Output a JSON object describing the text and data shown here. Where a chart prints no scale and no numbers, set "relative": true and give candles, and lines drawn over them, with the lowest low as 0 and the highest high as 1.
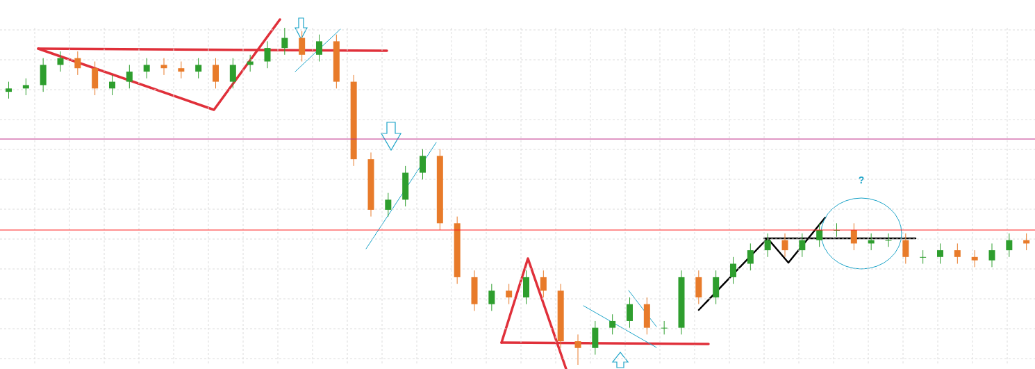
{
  "chart_data": {
    "type": "candlestick",
    "relative": true,
    "grid": true,
    "tick_labels": false,
    "categories": [
      null,
      null,
      null,
      null,
      null,
      null,
      null,
      null,
      null,
      null,
      null,
      null,
      null,
      null,
      null,
      null,
      null,
      null,
      null,
      null,
      null,
      null,
      null,
      null,
      null,
      null,
      null,
      null,
      null,
      null,
      null,
      null,
      null,
      null,
      null,
      null,
      null,
      null,
      null,
      null,
      null,
      null,
      null,
      null,
      null,
      null,
      null,
      null,
      null,
      null,
      null,
      null,
      null,
      null,
      null,
      null,
      null,
      null,
      null,
      null
    ],
    "ohlc": [
      [
        0.81,
        0.84,
        0.79,
        0.82
      ],
      [
        0.82,
        0.85,
        0.8,
        0.83
      ],
      [
        0.83,
        0.91,
        0.81,
        0.89
      ],
      [
        0.89,
        0.93,
        0.87,
        0.91
      ],
      [
        0.91,
        0.93,
        0.86,
        0.88
      ],
      [
        0.88,
        0.9,
        0.8,
        0.82
      ],
      [
        0.82,
        0.86,
        0.8,
        0.84
      ],
      [
        0.84,
        0.89,
        0.82,
        0.87
      ],
      [
        0.87,
        0.91,
        0.85,
        0.89
      ],
      [
        0.89,
        0.91,
        0.86,
        0.88
      ],
      [
        0.88,
        0.9,
        0.85,
        0.87
      ],
      [
        0.87,
        0.91,
        0.85,
        0.89
      ],
      [
        0.89,
        0.91,
        0.82,
        0.84
      ],
      [
        0.84,
        0.91,
        0.82,
        0.89
      ],
      [
        0.89,
        0.92,
        0.87,
        0.9
      ],
      [
        0.9,
        0.96,
        0.88,
        0.94
      ],
      [
        0.94,
        1.0,
        0.92,
        0.97
      ],
      [
        0.97,
        0.99,
        0.9,
        0.92
      ],
      [
        0.92,
        0.98,
        0.9,
        0.96
      ],
      [
        0.96,
        0.98,
        0.82,
        0.84
      ],
      [
        0.84,
        0.86,
        0.59,
        0.61
      ],
      [
        0.61,
        0.63,
        0.44,
        0.46
      ],
      [
        0.46,
        0.51,
        0.44,
        0.49
      ],
      [
        0.49,
        0.59,
        0.47,
        0.57
      ],
      [
        0.57,
        0.64,
        0.55,
        0.62
      ],
      [
        0.62,
        0.64,
        0.4,
        0.42
      ],
      [
        0.42,
        0.44,
        0.24,
        0.26
      ],
      [
        0.26,
        0.28,
        0.16,
        0.18
      ],
      [
        0.18,
        0.24,
        0.16,
        0.22
      ],
      [
        0.22,
        0.24,
        0.18,
        0.2
      ],
      [
        0.2,
        0.28,
        0.18,
        0.26
      ],
      [
        0.26,
        0.28,
        0.2,
        0.22
      ],
      [
        0.22,
        0.24,
        0.05,
        0.07
      ],
      [
        0.07,
        0.09,
        0.0,
        0.05
      ],
      [
        0.05,
        0.13,
        0.03,
        0.11
      ],
      [
        0.11,
        0.15,
        0.09,
        0.13
      ],
      [
        0.13,
        0.2,
        0.11,
        0.18
      ],
      [
        0.18,
        0.2,
        0.09,
        0.11
      ],
      [
        0.11,
        0.13,
        0.09,
        0.11
      ],
      [
        0.11,
        0.28,
        0.09,
        0.26
      ],
      [
        0.26,
        0.28,
        0.18,
        0.2
      ],
      [
        0.2,
        0.28,
        0.18,
        0.26
      ],
      [
        0.26,
        0.32,
        0.24,
        0.3
      ],
      [
        0.3,
        0.36,
        0.28,
        0.34
      ],
      [
        0.34,
        0.39,
        0.32,
        0.37
      ],
      [
        0.37,
        0.39,
        0.32,
        0.34
      ],
      [
        0.34,
        0.39,
        0.32,
        0.37
      ],
      [
        0.37,
        0.42,
        0.35,
        0.4
      ],
      [
        0.4,
        0.42,
        0.38,
        0.4
      ],
      [
        0.4,
        0.42,
        0.34,
        0.36
      ],
      [
        0.36,
        0.39,
        0.34,
        0.37
      ],
      [
        0.37,
        0.39,
        0.35,
        0.37
      ],
      [
        0.37,
        0.39,
        0.3,
        0.32
      ],
      [
        0.32,
        0.34,
        0.3,
        0.32
      ],
      [
        0.32,
        0.36,
        0.3,
        0.34
      ],
      [
        0.34,
        0.36,
        0.3,
        0.32
      ],
      [
        0.32,
        0.34,
        0.29,
        0.31
      ],
      [
        0.31,
        0.36,
        0.29,
        0.34
      ],
      [
        0.34,
        0.39,
        0.32,
        0.37
      ],
      [
        0.37,
        0.39,
        0.34,
        0.36
      ]
    ],
    "colors": [
      "#2e9e2e",
      "#2e9e2e",
      "#2e9e2e",
      "#2e9e2e",
      "#e87b2a",
      "#e87b2a",
      "#2e9e2e",
      "#2e9e2e",
      "#2e9e2e",
      "#e87b2a",
      "#e87b2a",
      "#2e9e2e",
      "#e87b2a",
      "#2e9e2e",
      "#2e9e2e",
      "#2e9e2e",
      "#2e9e2e",
      "#e87b2a",
      "#2e9e2e",
      "#e87b2a",
      "#e87b2a",
      "#e87b2a",
      "#2e9e2e",
      "#2e9e2e",
      "#2e9e2e",
      "#e87b2a",
      "#e87b2a",
      "#e87b2a",
      "#2e9e2e",
      "#e87b2a",
      "#2e9e2e",
      "#e87b2a",
      "#e87b2a",
      "#e87b2a",
      "#2e9e2e",
      "#2e9e2e",
      "#2e9e2e",
      "#e87b2a",
      "#2e9e2e",
      "#2e9e2e",
      "#e87b2a",
      "#2e9e2e",
      "#2e9e2e",
      "#2e9e2e",
      "#2e9e2e",
      "#e87b2a",
      "#2e9e2e",
      "#2e9e2e",
      "#2e9e2e",
      "#e87b2a",
      "#2e9e2e",
      "#2e9e2e",
      "#e87b2a",
      "#2e9e2e",
      "#2e9e2e",
      "#e87b2a",
      "#e87b2a",
      "#2e9e2e",
      "#2e9e2e",
      "#e87b2a"
    ],
    "ref_lines": [
      {
        "axis": "y",
        "value": 0.67,
        "color": "#c0308a"
      },
      {
        "axis": "y",
        "value": 0.4,
        "color": "#ff2020"
      }
    ],
    "annotations": [
      "?"
    ]
  }
}
